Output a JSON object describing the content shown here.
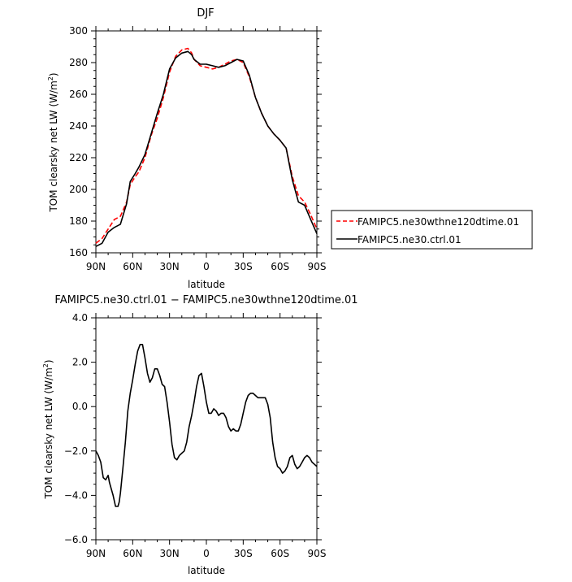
{
  "chart_data": [
    {
      "type": "line",
      "title": "DJF",
      "xlabel": "latitude",
      "ylabel": "TOM clearsky net LW (W/m²)",
      "ylabel_parts": {
        "main": "TOM clearsky net LW (W/m",
        "sup": "2",
        "end": ")"
      },
      "xlim": [
        90,
        -90
      ],
      "ylim": [
        160,
        300
      ],
      "x_ticks": [
        {
          "value": 90,
          "label": "90N"
        },
        {
          "value": 60,
          "label": "60N"
        },
        {
          "value": 30,
          "label": "30N"
        },
        {
          "value": 0,
          "label": "0"
        },
        {
          "value": -30,
          "label": "30S"
        },
        {
          "value": -60,
          "label": "60S"
        },
        {
          "value": -90,
          "label": "90S"
        }
      ],
      "y_ticks": [
        {
          "value": 160,
          "label": "160"
        },
        {
          "value": 180,
          "label": "180"
        },
        {
          "value": 200,
          "label": "200"
        },
        {
          "value": 220,
          "label": "220"
        },
        {
          "value": 240,
          "label": "240"
        },
        {
          "value": 260,
          "label": "260"
        },
        {
          "value": 280,
          "label": "280"
        },
        {
          "value": 300,
          "label": "300"
        }
      ],
      "legend_position": "right",
      "series": [
        {
          "name": "FAMIPC5.ne30wthne120dtime.01",
          "color": "#ff0000",
          "dash": "dashed",
          "x": [
            90,
            85,
            80,
            75,
            70,
            65,
            62,
            58,
            55,
            50,
            45,
            40,
            35,
            30,
            25,
            20,
            15,
            12,
            10,
            5,
            0,
            -5,
            -10,
            -15,
            -20,
            -25,
            -30,
            -35,
            -40,
            -45,
            -50,
            -55,
            -60,
            -65,
            -70,
            -75,
            -80,
            -85,
            -90
          ],
          "y": [
            166,
            169,
            175,
            181,
            183,
            192,
            203,
            208,
            211,
            220,
            234,
            245,
            258,
            274,
            284,
            288,
            289,
            286,
            282,
            278,
            277,
            276,
            277,
            279,
            281,
            282,
            280,
            271,
            258,
            248,
            240,
            235,
            231,
            226,
            208,
            196,
            192,
            184,
            175
          ]
        },
        {
          "name": "FAMIPC5.ne30.ctrl.01",
          "color": "#000000",
          "dash": "solid",
          "x": [
            90,
            85,
            80,
            75,
            70,
            65,
            62,
            58,
            55,
            50,
            45,
            40,
            35,
            30,
            25,
            20,
            15,
            12,
            10,
            5,
            0,
            -5,
            -10,
            -15,
            -20,
            -25,
            -30,
            -35,
            -40,
            -45,
            -50,
            -55,
            -60,
            -65,
            -70,
            -75,
            -80,
            -85,
            -90
          ],
          "y": [
            164,
            166,
            173,
            176,
            178,
            191,
            205,
            210,
            214,
            222,
            235,
            248,
            260,
            276,
            283,
            286,
            287,
            285,
            282,
            279,
            279,
            278,
            277,
            278,
            280,
            282,
            281,
            272,
            258,
            248,
            240,
            235,
            231,
            226,
            206,
            192,
            190,
            181,
            172
          ]
        }
      ]
    },
    {
      "type": "line",
      "title": "FAMIPC5.ne30.ctrl.01 − FAMIPC5.ne30wthne120dtime.01",
      "xlabel": "latitude",
      "ylabel": "TOM clearsky net LW (W/m²)",
      "ylabel_parts": {
        "main": "TOM clearsky net LW (W/m",
        "sup": "2",
        "end": ")"
      },
      "xlim": [
        90,
        -90
      ],
      "ylim": [
        -6.0,
        4.0
      ],
      "x_ticks": [
        {
          "value": 90,
          "label": "90N"
        },
        {
          "value": 60,
          "label": "60N"
        },
        {
          "value": 30,
          "label": "30N"
        },
        {
          "value": 0,
          "label": "0"
        },
        {
          "value": -30,
          "label": "30S"
        },
        {
          "value": -60,
          "label": "60S"
        },
        {
          "value": -90,
          "label": "90S"
        }
      ],
      "y_ticks": [
        {
          "value": -6.0,
          "label": "−6.0"
        },
        {
          "value": -4.0,
          "label": "−4.0"
        },
        {
          "value": -2.0,
          "label": "−2.0"
        },
        {
          "value": 0.0,
          "label": "0.0"
        },
        {
          "value": 2.0,
          "label": "2.0"
        },
        {
          "value": 4.0,
          "label": "4.0"
        }
      ],
      "series": [
        {
          "color": "#000000",
          "dash": "solid",
          "x": [
            90,
            88,
            86,
            84,
            82,
            80,
            79,
            78,
            76,
            74,
            72,
            71,
            70,
            68,
            66,
            64,
            62,
            60,
            58,
            56,
            54,
            52,
            50,
            48,
            46,
            44,
            42,
            40,
            38,
            36,
            34,
            32,
            30,
            28,
            26,
            24,
            22,
            20,
            18,
            16,
            14,
            12,
            10,
            8,
            6,
            4,
            2,
            0,
            -2,
            -4,
            -6,
            -8,
            -10,
            -12,
            -14,
            -16,
            -18,
            -20,
            -22,
            -24,
            -26,
            -28,
            -30,
            -32,
            -34,
            -36,
            -38,
            -40,
            -42,
            -44,
            -46,
            -48,
            -50,
            -52,
            -54,
            -56,
            -58,
            -60,
            -62,
            -64,
            -66,
            -68,
            -70,
            -72,
            -74,
            -76,
            -78,
            -80,
            -82,
            -84,
            -86,
            -88,
            -90
          ],
          "y": [
            -2.0,
            -2.2,
            -2.5,
            -3.2,
            -3.3,
            -3.1,
            -3.4,
            -3.6,
            -4.0,
            -4.5,
            -4.5,
            -4.3,
            -3.9,
            -2.8,
            -1.6,
            -0.2,
            0.6,
            1.2,
            1.9,
            2.5,
            2.8,
            2.8,
            2.2,
            1.5,
            1.1,
            1.3,
            1.7,
            1.7,
            1.4,
            1.0,
            0.9,
            0.2,
            -0.7,
            -1.7,
            -2.3,
            -2.4,
            -2.2,
            -2.1,
            -2.0,
            -1.6,
            -0.9,
            -0.4,
            0.2,
            0.9,
            1.4,
            1.5,
            0.9,
            0.2,
            -0.3,
            -0.3,
            -0.1,
            -0.2,
            -0.4,
            -0.3,
            -0.3,
            -0.5,
            -0.9,
            -1.1,
            -1.0,
            -1.1,
            -1.1,
            -0.8,
            -0.3,
            0.2,
            0.5,
            0.6,
            0.6,
            0.5,
            0.4,
            0.4,
            0.4,
            0.4,
            0.1,
            -0.5,
            -1.6,
            -2.3,
            -2.7,
            -2.8,
            -3.0,
            -2.9,
            -2.7,
            -2.3,
            -2.2,
            -2.6,
            -2.8,
            -2.7,
            -2.5,
            -2.3,
            -2.2,
            -2.3,
            -2.5,
            -2.6,
            -2.7
          ]
        }
      ]
    }
  ]
}
